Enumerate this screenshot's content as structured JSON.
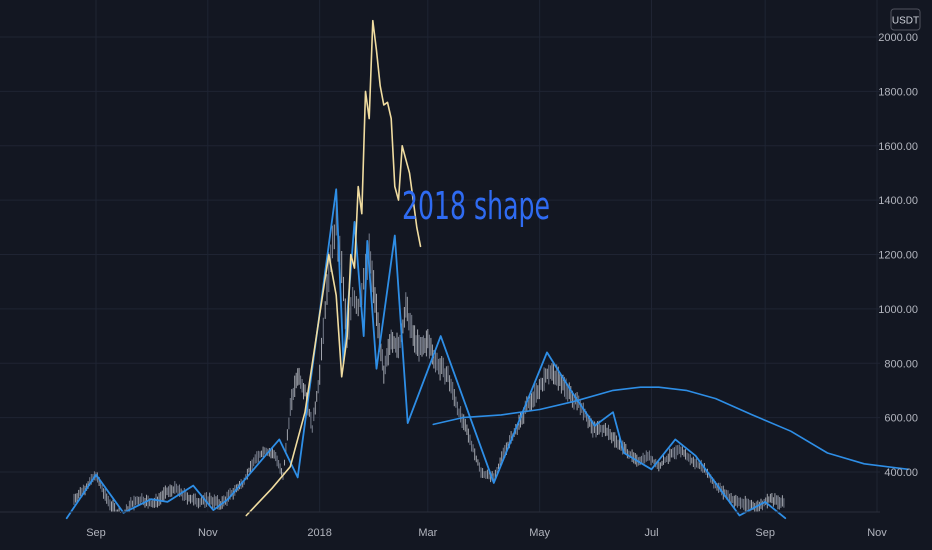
{
  "currency_badge": "USDT",
  "annotation_text": "2018 shape",
  "colors": {
    "background": "#131722",
    "grid": "#1f2433",
    "axis_text": "#b2b5be",
    "candle_up": "#d1d4dc",
    "candle_down": "#9aa0b0",
    "zigzag": "#2e8ee6",
    "moving_average": "#2e8ee6",
    "overlay_2018": "#f0dca0",
    "annotation": "#2f6bf2"
  },
  "chart_data": {
    "type": "line",
    "y_axis_side": "right",
    "ylim": [
      240,
      2070
    ],
    "y_ticks": [
      400,
      600,
      800,
      1000,
      1200,
      1400,
      1600,
      1800,
      2000
    ],
    "y_tick_labels": [
      "400.00",
      "600.00",
      "800.00",
      "1000.00",
      "1200.00",
      "1400.00",
      "1600.00",
      "1800.00",
      "2000.00"
    ],
    "x_range": [
      "2017-07-22",
      "2018-11-20"
    ],
    "x_ticks": [
      {
        "label": "Sep",
        "date": "2017-09-01"
      },
      {
        "label": "Nov",
        "date": "2017-11-01"
      },
      {
        "label": "2018",
        "date": "2018-01-01"
      },
      {
        "label": "Mar",
        "date": "2018-03-01"
      },
      {
        "label": "May",
        "date": "2018-05-01"
      },
      {
        "label": "Jul",
        "date": "2018-07-01"
      },
      {
        "label": "Sep",
        "date": "2018-09-01"
      },
      {
        "label": "Nov",
        "date": "2018-11-01"
      }
    ],
    "grid": true,
    "series": [
      {
        "role": "price",
        "x": [
          "2017-08-20",
          "2017-08-26",
          "2017-09-01",
          "2017-09-06",
          "2017-09-12",
          "2017-09-16",
          "2017-09-20",
          "2017-09-26",
          "2017-10-02",
          "2017-10-08",
          "2017-10-14",
          "2017-10-20",
          "2017-10-26",
          "2017-11-02",
          "2017-11-08",
          "2017-11-14",
          "2017-11-20",
          "2017-11-26",
          "2017-12-02",
          "2017-12-08",
          "2017-12-12",
          "2017-12-16",
          "2017-12-20",
          "2017-12-24",
          "2017-12-28",
          "2018-01-01",
          "2018-01-04",
          "2018-01-07",
          "2018-01-10",
          "2018-01-13",
          "2018-01-16",
          "2018-01-19",
          "2018-01-22",
          "2018-01-25",
          "2018-01-28",
          "2018-02-01",
          "2018-02-05",
          "2018-02-09",
          "2018-02-13",
          "2018-02-17",
          "2018-02-21",
          "2018-02-25",
          "2018-03-01",
          "2018-03-06",
          "2018-03-12",
          "2018-03-18",
          "2018-03-24",
          "2018-03-30",
          "2018-04-06",
          "2018-04-12",
          "2018-04-18",
          "2018-04-24",
          "2018-04-30",
          "2018-05-06",
          "2018-05-12",
          "2018-05-18",
          "2018-05-24",
          "2018-05-30",
          "2018-06-05",
          "2018-06-11",
          "2018-06-17",
          "2018-06-23",
          "2018-06-29",
          "2018-07-05",
          "2018-07-11",
          "2018-07-17",
          "2018-07-23",
          "2018-07-29",
          "2018-08-04",
          "2018-08-10",
          "2018-08-16",
          "2018-08-22",
          "2018-08-28",
          "2018-09-03",
          "2018-09-08",
          "2018-09-12"
        ],
        "y": [
          300,
          340,
          390,
          310,
          250,
          230,
          280,
          300,
          280,
          320,
          340,
          310,
          290,
          300,
          280,
          320,
          360,
          440,
          480,
          460,
          380,
          640,
          760,
          700,
          560,
          760,
          1000,
          1200,
          1300,
          1150,
          900,
          1050,
          1000,
          1100,
          1200,
          1000,
          750,
          900,
          850,
          1000,
          900,
          850,
          880,
          800,
          750,
          620,
          520,
          400,
          380,
          480,
          550,
          640,
          700,
          770,
          740,
          680,
          640,
          560,
          560,
          520,
          480,
          440,
          460,
          420,
          460,
          480,
          440,
          420,
          360,
          320,
          290,
          280,
          270,
          300,
          290,
          280
        ]
      },
      {
        "role": "zigzag",
        "x": [
          "2017-08-16",
          "2017-09-01",
          "2017-09-16",
          "2017-10-01",
          "2017-10-10",
          "2017-10-24",
          "2017-11-04",
          "2017-11-12",
          "2017-12-10",
          "2017-12-20",
          "2018-01-10",
          "2018-01-14",
          "2018-01-20",
          "2018-01-25",
          "2018-01-27",
          "2018-02-01",
          "2018-02-11",
          "2018-02-18",
          "2018-03-08",
          "2018-04-06",
          "2018-05-05",
          "2018-05-18",
          "2018-05-31",
          "2018-06-10",
          "2018-06-16",
          "2018-07-01",
          "2018-07-14",
          "2018-07-25",
          "2018-08-18",
          "2018-09-01",
          "2018-09-12"
        ],
        "y": [
          230,
          390,
          250,
          300,
          290,
          350,
          260,
          300,
          520,
          380,
          1440,
          800,
          1320,
          900,
          1250,
          780,
          1270,
          580,
          900,
          360,
          840,
          700,
          570,
          620,
          470,
          410,
          520,
          460,
          240,
          290,
          230
        ]
      },
      {
        "role": "moving_average",
        "x": [
          "2018-03-04",
          "2018-03-20",
          "2018-04-10",
          "2018-05-01",
          "2018-05-20",
          "2018-06-10",
          "2018-06-25",
          "2018-07-05",
          "2018-07-20",
          "2018-08-05",
          "2018-08-25",
          "2018-09-15",
          "2018-10-05",
          "2018-10-25",
          "2018-11-18"
        ],
        "y": [
          575,
          600,
          610,
          630,
          660,
          700,
          712,
          712,
          700,
          670,
          610,
          550,
          470,
          430,
          410
        ]
      },
      {
        "role": "overlay_2018",
        "x": [
          "2017-11-22",
          "2017-12-06",
          "2017-12-16",
          "2017-12-24",
          "2018-01-01",
          "2018-01-06",
          "2018-01-10",
          "2018-01-13",
          "2018-01-16",
          "2018-01-18",
          "2018-01-20",
          "2018-01-22",
          "2018-01-24",
          "2018-01-26",
          "2018-01-28",
          "2018-01-30",
          "2018-02-01",
          "2018-02-03",
          "2018-02-05",
          "2018-02-07",
          "2018-02-09",
          "2018-02-11",
          "2018-02-13",
          "2018-02-15",
          "2018-02-17",
          "2018-02-19",
          "2018-02-21",
          "2018-02-23",
          "2018-02-25"
        ],
        "y": [
          240,
          340,
          420,
          620,
          980,
          1200,
          1050,
          750,
          900,
          1200,
          1150,
          1450,
          1350,
          1800,
          1700,
          2060,
          1950,
          1820,
          1750,
          1760,
          1700,
          1450,
          1400,
          1600,
          1550,
          1500,
          1400,
          1300,
          1230
        ]
      }
    ]
  }
}
